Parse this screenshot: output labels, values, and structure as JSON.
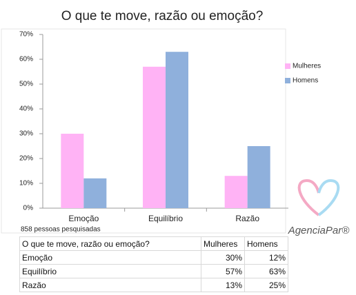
{
  "chart_data": {
    "type": "bar",
    "title": "O que te move, razão ou emoção?",
    "categories": [
      "Emoção",
      "Equilíbrio",
      "Razão"
    ],
    "series": [
      {
        "name": "Mulheres",
        "color": "#ffb3f5",
        "values": [
          30,
          57,
          13
        ]
      },
      {
        "name": "Homens",
        "color": "#8fb0dc",
        "values": [
          12,
          63,
          25
        ]
      }
    ],
    "ylim": [
      0,
      70
    ],
    "yticks": [
      {
        "value": 0,
        "label": "0%"
      },
      {
        "value": 10,
        "label": "10%"
      },
      {
        "value": 20,
        "label": "20%"
      },
      {
        "value": 30,
        "label": "30%"
      },
      {
        "value": 40,
        "label": "40%"
      },
      {
        "value": 50,
        "label": "50%"
      },
      {
        "value": 60,
        "label": "60%"
      },
      {
        "value": 70,
        "label": "70%"
      }
    ],
    "grid": false,
    "legend": "right",
    "annotation": "858 pessoas pesquisadas"
  },
  "table": {
    "header": [
      "O que te move, razão ou emoção?",
      "Mulheres",
      "Homens"
    ],
    "rows": [
      [
        "Emoção",
        "30%",
        "12%"
      ],
      [
        "Equilíbrio",
        "57%",
        "63%"
      ],
      [
        "Razão",
        "13%",
        "25%"
      ]
    ]
  },
  "logo": "AgenciaPar®"
}
